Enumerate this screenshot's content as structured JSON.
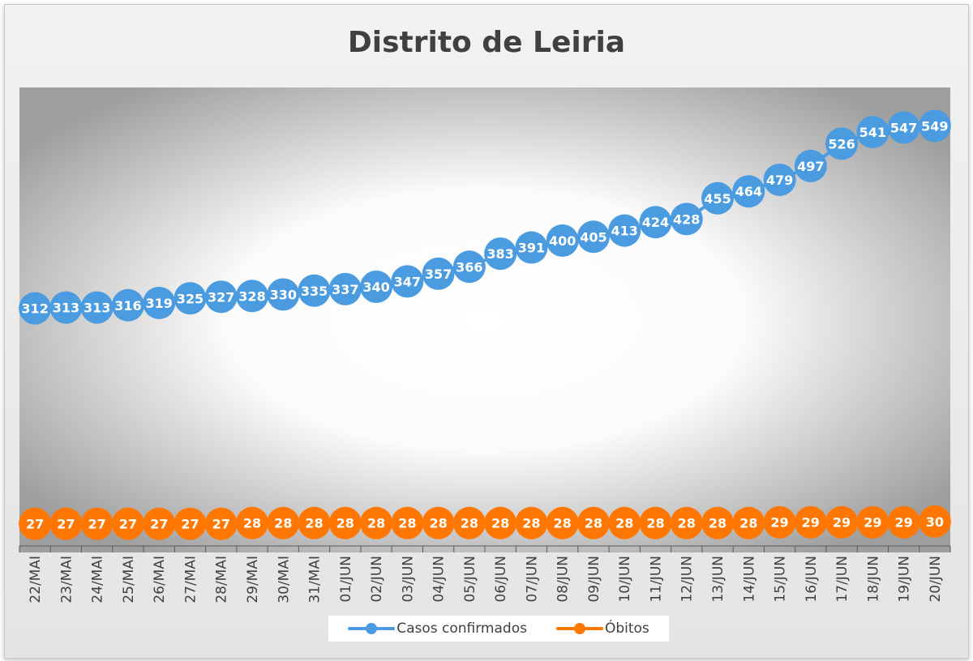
{
  "chart_data": {
    "type": "line",
    "title": "Distrito de Leiria",
    "categories": [
      "22/MAI",
      "23/MAI",
      "24/MAI",
      "25/MAI",
      "26/MAI",
      "27/MAI",
      "28/MAI",
      "29/MAI",
      "30/MAI",
      "31/MAI",
      "01/JUN",
      "02/JUN",
      "03/JUN",
      "04/JUN",
      "05/JUN",
      "06/JUN",
      "07/JUN",
      "08/JUN",
      "09/JUN",
      "10/JUN",
      "11/JUN",
      "12/JUN",
      "13/JUN",
      "14/JUN",
      "15/JUN",
      "16/JUN",
      "17/JUN",
      "18/JUN",
      "19/JUN",
      "20/JUN"
    ],
    "series": [
      {
        "name": "Casos confirmados",
        "color": "#4a9be0",
        "values": [
          312,
          313,
          313,
          316,
          319,
          325,
          327,
          328,
          330,
          335,
          337,
          340,
          347,
          357,
          366,
          383,
          391,
          400,
          405,
          413,
          424,
          428,
          455,
          464,
          479,
          497,
          526,
          541,
          547,
          549
        ]
      },
      {
        "name": "Óbitos",
        "color": "#ff7700",
        "values": [
          27,
          27,
          27,
          27,
          27,
          27,
          27,
          28,
          28,
          28,
          28,
          28,
          28,
          28,
          28,
          28,
          28,
          28,
          28,
          28,
          28,
          28,
          28,
          28,
          29,
          29,
          29,
          29,
          29,
          30
        ]
      }
    ],
    "data_labels": true,
    "grid": false,
    "legend_position": "bottom",
    "xlabel": "",
    "ylabel": ""
  }
}
